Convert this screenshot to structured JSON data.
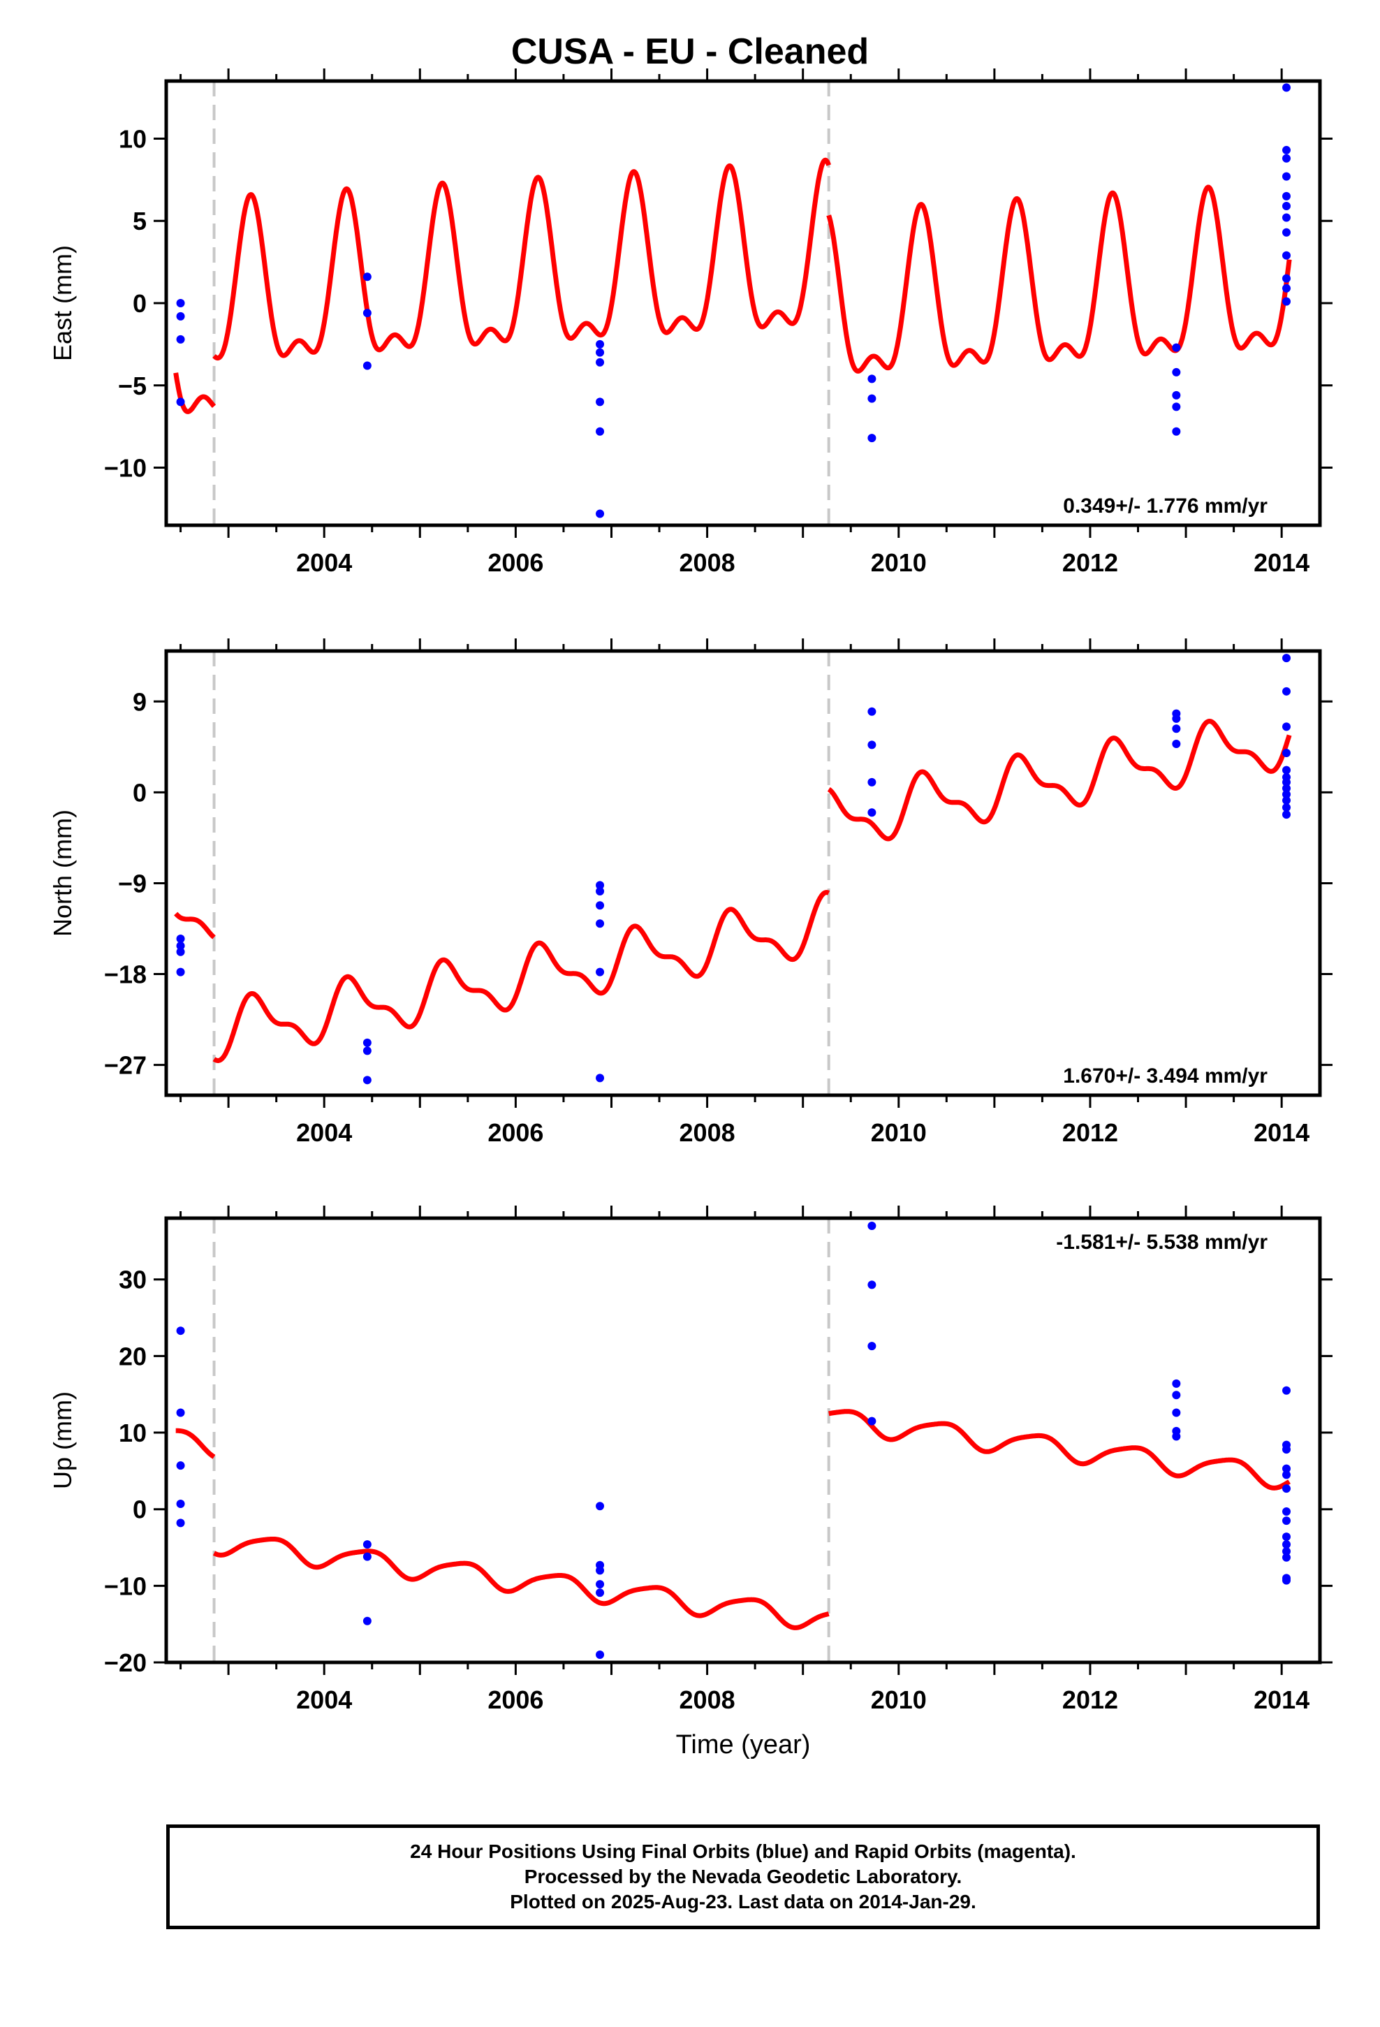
{
  "title": "CUSA  - EU - Cleaned",
  "footer": {
    "line1": "24 Hour Positions Using Final Orbits (blue) and Rapid Orbits (magenta).",
    "line2": "Processed by the Nevada Geodetic Laboratory.",
    "line3": "Plotted on 2025-Aug-23. Last data on 2014-Jan-29."
  },
  "colors": {
    "points": "#0000ff",
    "model": "#ff0000",
    "breaks": "#c8c8c8"
  },
  "chart_data": [
    {
      "type": "scatter",
      "ylabel": "East (mm)",
      "xlabel": "",
      "xlim": [
        2002.35,
        2014.4
      ],
      "ylim": [
        -13.5,
        13.5
      ],
      "xticks": [
        2004,
        2006,
        2008,
        2010,
        2012,
        2014
      ],
      "yticks": [
        -10,
        -5,
        0,
        5,
        10
      ],
      "rate_label": "0.349+/- 1.776 mm/yr",
      "rate_position": "bottom-right",
      "breaks": [
        2002.85,
        2009.27
      ],
      "points": [
        [
          2002.5,
          0.0
        ],
        [
          2002.5,
          -0.8
        ],
        [
          2002.5,
          -2.2
        ],
        [
          2002.5,
          -6.0
        ],
        [
          2004.45,
          1.6
        ],
        [
          2004.45,
          -0.6
        ],
        [
          2004.45,
          -3.8
        ],
        [
          2006.88,
          -2.5
        ],
        [
          2006.88,
          -3.0
        ],
        [
          2006.88,
          -3.6
        ],
        [
          2006.88,
          -6.0
        ],
        [
          2006.88,
          -7.8
        ],
        [
          2006.88,
          -12.8
        ],
        [
          2009.72,
          -4.6
        ],
        [
          2009.72,
          -5.8
        ],
        [
          2009.72,
          -8.2
        ],
        [
          2012.9,
          -2.7
        ],
        [
          2012.9,
          -4.2
        ],
        [
          2012.9,
          -5.6
        ],
        [
          2012.9,
          -6.3
        ],
        [
          2012.9,
          -7.8
        ],
        [
          2014.05,
          13.1
        ],
        [
          2014.05,
          9.3
        ],
        [
          2014.05,
          8.8
        ],
        [
          2014.05,
          7.7
        ],
        [
          2014.05,
          6.5
        ],
        [
          2014.05,
          5.9
        ],
        [
          2014.05,
          5.2
        ],
        [
          2014.05,
          4.3
        ],
        [
          2014.05,
          2.9
        ],
        [
          2014.05,
          1.5
        ],
        [
          2014.05,
          0.9
        ],
        [
          2014.05,
          0.1
        ]
      ],
      "model": {
        "rate": 0.349,
        "segments": [
          {
            "x0": 2002.45,
            "x1": 2002.85,
            "y0": -3.3
          },
          {
            "x0": 2002.85,
            "x1": 2009.27,
            "y0": -0.1
          },
          {
            "x0": 2009.27,
            "x1": 2014.08,
            "y0": -0.9
          }
        ],
        "annual": {
          "sin": 4.5,
          "cos": 0.5
        },
        "semiannual": {
          "sin": 0.4,
          "cos": -2.0
        }
      }
    },
    {
      "type": "scatter",
      "ylabel": "North (mm)",
      "xlabel": "",
      "xlim": [
        2002.35,
        2014.4
      ],
      "ylim": [
        -30.0,
        14.0
      ],
      "xticks": [
        2004,
        2006,
        2008,
        2010,
        2012,
        2014
      ],
      "yticks": [
        -27,
        -18,
        -9,
        0,
        9
      ],
      "rate_label": "1.670+/- 3.494 mm/yr",
      "rate_position": "bottom-right",
      "breaks": [
        2002.85,
        2009.27
      ],
      "points": [
        [
          2002.5,
          -14.5
        ],
        [
          2002.5,
          -15.2
        ],
        [
          2002.5,
          -15.8
        ],
        [
          2002.5,
          -17.8
        ],
        [
          2004.45,
          -24.8
        ],
        [
          2004.45,
          -25.6
        ],
        [
          2004.45,
          -28.5
        ],
        [
          2006.88,
          -9.2
        ],
        [
          2006.88,
          -9.8
        ],
        [
          2006.88,
          -11.2
        ],
        [
          2006.88,
          -13.0
        ],
        [
          2006.88,
          -17.8
        ],
        [
          2006.88,
          -28.3
        ],
        [
          2009.72,
          8.0
        ],
        [
          2009.72,
          4.7
        ],
        [
          2009.72,
          1.0
        ],
        [
          2009.72,
          -2.0
        ],
        [
          2012.9,
          7.8
        ],
        [
          2012.9,
          7.3
        ],
        [
          2012.9,
          6.3
        ],
        [
          2012.9,
          4.8
        ],
        [
          2014.05,
          13.3
        ],
        [
          2014.05,
          10.0
        ],
        [
          2014.05,
          6.5
        ],
        [
          2014.05,
          3.9
        ],
        [
          2014.05,
          2.2
        ],
        [
          2014.05,
          1.5
        ],
        [
          2014.05,
          1.0
        ],
        [
          2014.05,
          0.4
        ],
        [
          2014.05,
          -0.2
        ],
        [
          2014.05,
          -0.8
        ],
        [
          2014.05,
          -1.5
        ],
        [
          2014.05,
          -2.2
        ]
      ],
      "model": {
        "rate": 1.67,
        "segments": [
          {
            "x0": 2002.45,
            "x1": 2002.85,
            "y0": -12.4
          },
          {
            "x0": 2002.85,
            "x1": 2009.27,
            "y0": -23.8
          },
          {
            "x0": 2009.27,
            "x1": 2014.08,
            "y0": -2.8
          }
        ],
        "annual": {
          "sin": 2.3,
          "cos": -0.8
        },
        "semiannual": {
          "sin": 0.6,
          "cos": -0.9
        }
      }
    },
    {
      "type": "scatter",
      "ylabel": "Up (mm)",
      "xlabel": "Time (year)",
      "xlim": [
        2002.35,
        2014.4
      ],
      "ylim": [
        -20.0,
        38.0
      ],
      "xticks": [
        2004,
        2006,
        2008,
        2010,
        2012,
        2014
      ],
      "yticks": [
        -20,
        -10,
        0,
        10,
        20,
        30
      ],
      "rate_label": "-1.581+/- 5.538 mm/yr",
      "rate_position": "top-right",
      "breaks": [
        2002.85,
        2009.27
      ],
      "points": [
        [
          2002.5,
          23.3
        ],
        [
          2002.5,
          12.6
        ],
        [
          2002.5,
          5.7
        ],
        [
          2002.5,
          0.7
        ],
        [
          2002.5,
          -1.8
        ],
        [
          2004.45,
          -4.6
        ],
        [
          2004.45,
          -6.2
        ],
        [
          2004.45,
          -14.6
        ],
        [
          2006.88,
          0.4
        ],
        [
          2006.88,
          -7.3
        ],
        [
          2006.88,
          -8.0
        ],
        [
          2006.88,
          -9.8
        ],
        [
          2006.88,
          -10.9
        ],
        [
          2006.88,
          -19.0
        ],
        [
          2009.72,
          37.0
        ],
        [
          2009.72,
          29.3
        ],
        [
          2009.72,
          21.3
        ],
        [
          2009.72,
          11.5
        ],
        [
          2012.9,
          16.4
        ],
        [
          2012.9,
          14.9
        ],
        [
          2012.9,
          12.6
        ],
        [
          2012.9,
          10.2
        ],
        [
          2012.9,
          9.5
        ],
        [
          2014.05,
          15.5
        ],
        [
          2014.05,
          8.4
        ],
        [
          2014.05,
          7.8
        ],
        [
          2014.05,
          5.3
        ],
        [
          2014.05,
          4.5
        ],
        [
          2014.05,
          2.7
        ],
        [
          2014.05,
          -0.3
        ],
        [
          2014.05,
          -1.5
        ],
        [
          2014.05,
          -3.6
        ],
        [
          2014.05,
          -4.6
        ],
        [
          2014.05,
          -5.5
        ],
        [
          2014.05,
          -6.3
        ],
        [
          2014.05,
          -9.0
        ],
        [
          2014.05,
          -9.3
        ]
      ],
      "model": {
        "rate": -1.581,
        "segments": [
          {
            "x0": 2002.45,
            "x1": 2002.85,
            "y0": 9.0
          },
          {
            "x0": 2002.85,
            "x1": 2009.27,
            "y0": -4.2
          },
          {
            "x0": 2009.27,
            "x1": 2014.08,
            "y0": 11.8
          }
        ],
        "annual": {
          "sin": 0.6,
          "cos": -1.3
        },
        "semiannual": {
          "sin": 0.3,
          "cos": 0.0
        }
      }
    }
  ]
}
